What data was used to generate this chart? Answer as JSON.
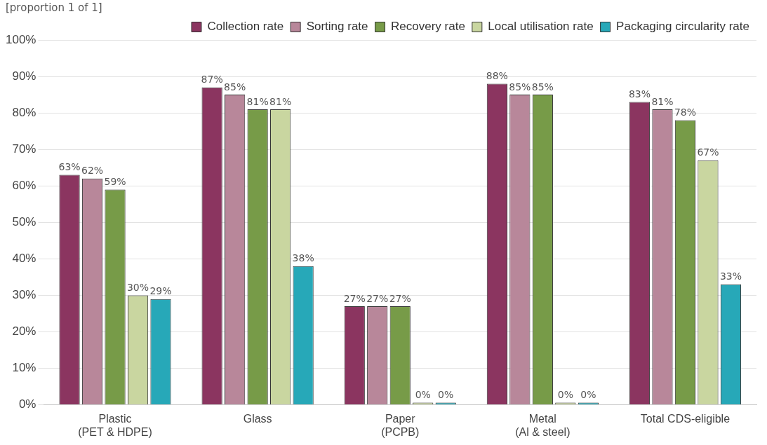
{
  "chart_data": {
    "type": "bar",
    "ylabel": "[proportion 1 of 1]",
    "categories": [
      "Plastic\n(PET & HDPE)",
      "Glass",
      "Paper\n(PCPB)",
      "Metal\n(Al & steel)",
      "Total CDS-eligible"
    ],
    "series": [
      {
        "name": "Collection rate",
        "color": "#8b3560",
        "values": [
          63,
          87,
          27,
          88,
          83
        ],
        "value_labels": [
          "63%",
          "87%",
          "27%",
          "88%",
          "83%"
        ]
      },
      {
        "name": "Sorting rate",
        "color": "#b8879a",
        "values": [
          62,
          85,
          27,
          85,
          81
        ],
        "value_labels": [
          "62%",
          "85%",
          "27%",
          "85%",
          "81%"
        ]
      },
      {
        "name": "Recovery rate",
        "color": "#779b48",
        "values": [
          59,
          81,
          27,
          85,
          78
        ],
        "value_labels": [
          "59%",
          "81%",
          "27%",
          "85%",
          "78%"
        ]
      },
      {
        "name": "Local utilisation rate",
        "color": "#c9d6a0",
        "values": [
          30,
          81,
          0,
          0,
          67
        ],
        "value_labels": [
          "30%",
          "81%",
          "0%",
          "0%",
          "67%"
        ]
      },
      {
        "name": "Packaging circularity rate",
        "color": "#27a8b8",
        "values": [
          29,
          38,
          0,
          0,
          33
        ],
        "value_labels": [
          "29%",
          "38%",
          "0%",
          "0%",
          "33%"
        ]
      }
    ],
    "ylim": [
      0,
      100
    ],
    "yticks": [
      {
        "value": 0,
        "label": "0%"
      },
      {
        "value": 10,
        "label": "10%"
      },
      {
        "value": 20,
        "label": "20%"
      },
      {
        "value": 30,
        "label": "30%"
      },
      {
        "value": 40,
        "label": "40%"
      },
      {
        "value": 50,
        "label": "50%"
      },
      {
        "value": 60,
        "label": "60%"
      },
      {
        "value": 70,
        "label": "70%"
      },
      {
        "value": 80,
        "label": "80%"
      },
      {
        "value": 90,
        "label": "90%"
      },
      {
        "value": 100,
        "label": "100%"
      }
    ],
    "grid": "y",
    "legend": "top right"
  }
}
